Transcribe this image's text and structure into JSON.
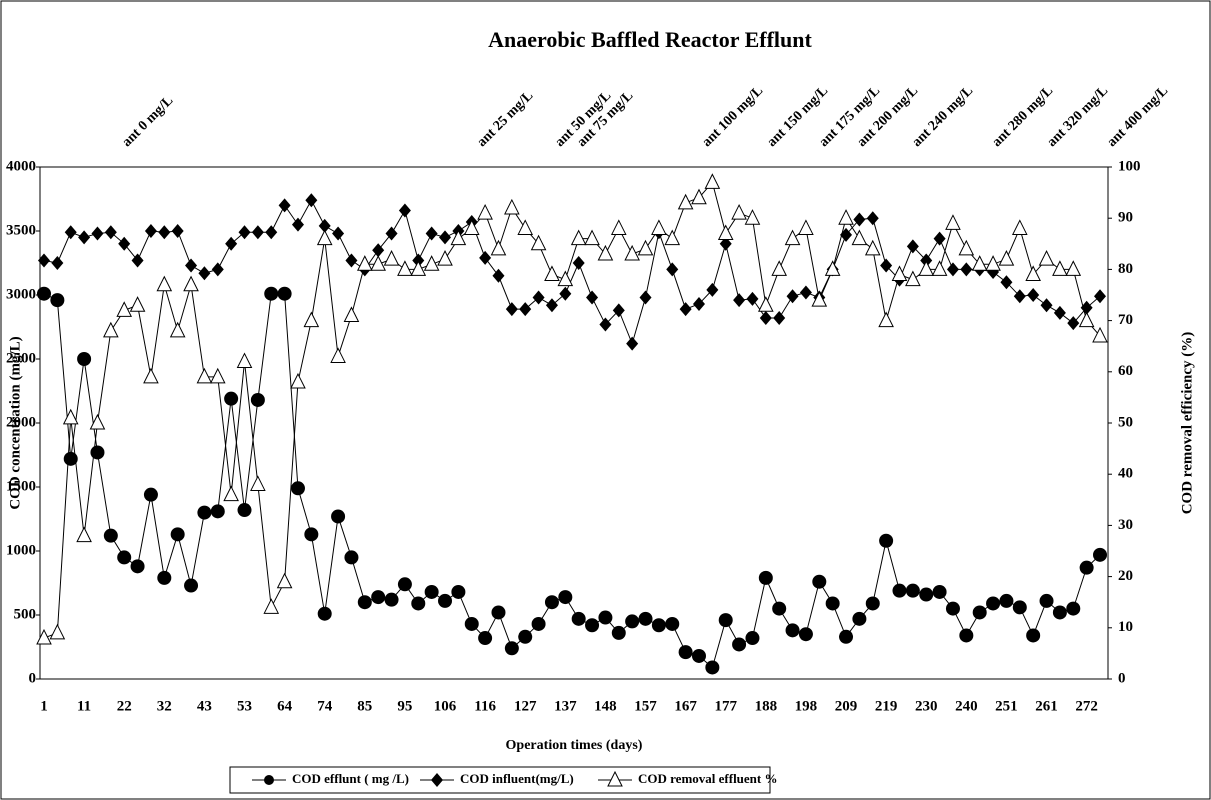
{
  "chart_data": {
    "type": "line",
    "title": "Anaerobic Baffled Reactor Efflunt",
    "x_label": "Operation times (days)",
    "y_label": "COD concentration (mg/L)",
    "y2_label": "COD removal efficiency (%)",
    "annotations": [
      "ant 0 mg/L",
      "ant 25 mg/L",
      "ant 50 mg/L",
      "ant 75 mg/L",
      "ant 100 mg/L",
      "ant 150 mg/L",
      "ant 175 mg/L",
      "ant 200 mg/L",
      "ant 240 mg/L",
      "ant 280 mg/L",
      "ant 320 mg/L",
      "ant 400 mg/L"
    ],
    "categories": [
      "1",
      null,
      null,
      "11",
      null,
      null,
      "22",
      null,
      null,
      "32",
      null,
      null,
      "43",
      null,
      null,
      "53",
      null,
      null,
      "64",
      null,
      null,
      "74",
      null,
      null,
      "85",
      null,
      null,
      "95",
      null,
      null,
      "106",
      null,
      null,
      "116",
      null,
      null,
      "127",
      null,
      null,
      "137",
      null,
      null,
      "148",
      null,
      null,
      "157",
      null,
      null,
      "167",
      null,
      null,
      "177",
      null,
      null,
      "188",
      null,
      null,
      "198",
      null,
      null,
      "209",
      null,
      null,
      "219",
      null,
      null,
      "230",
      null,
      null,
      "240",
      null,
      null,
      "251",
      null,
      null,
      "261",
      null,
      null,
      "272",
      null
    ],
    "ylim": [
      0,
      4000
    ],
    "yticks": [
      0,
      500,
      1000,
      1500,
      2000,
      2500,
      3000,
      3500,
      4000
    ],
    "y2lim": [
      0,
      100
    ],
    "y2ticks": [
      0,
      10,
      20,
      30,
      40,
      50,
      60,
      70,
      80,
      90,
      100
    ],
    "series": [
      {
        "name": "COD efflunt ( mg /L)",
        "color": "#000000",
        "marker": "circle",
        "values": [
          3010,
          2960,
          1720,
          2500,
          1770,
          1120,
          950,
          880,
          1440,
          790,
          1130,
          730,
          1300,
          1310,
          2190,
          1320,
          2180,
          3010,
          3010,
          1490,
          1130,
          510,
          1270,
          950,
          600,
          640,
          620,
          740,
          590,
          680,
          610,
          680,
          430,
          320,
          520,
          240,
          330,
          430,
          600,
          640,
          470,
          420,
          480,
          360,
          450,
          470,
          420,
          430,
          210,
          180,
          90,
          460,
          270,
          320,
          790,
          550,
          380,
          350,
          760,
          590,
          330,
          470,
          590,
          1080,
          690,
          690,
          660,
          680,
          550,
          340,
          520,
          590,
          610,
          560,
          340,
          610,
          520,
          550,
          870,
          970
        ]
      },
      {
        "name": "COD influent(mg/L)",
        "color": "#000000",
        "marker": "diamond",
        "values": [
          3270,
          3250,
          3490,
          3450,
          3480,
          3490,
          3400,
          3270,
          3500,
          3490,
          3500,
          3230,
          3170,
          3200,
          3400,
          3490,
          3490,
          3490,
          3700,
          3550,
          3740,
          3540,
          3480,
          3270,
          3200,
          3350,
          3480,
          3660,
          3270,
          3480,
          3450,
          3500,
          3570,
          3290,
          3150,
          2890,
          2890,
          2980,
          2920,
          3010,
          3250,
          2980,
          2770,
          2880,
          2620,
          2980,
          3490,
          3200,
          2890,
          2930,
          3040,
          3400,
          2960,
          2970,
          2820,
          2820,
          2990,
          3020,
          2980,
          3200,
          3470,
          3590,
          3600,
          3230,
          3120,
          3380,
          3270,
          3440,
          3200,
          3200,
          3200,
          3180,
          3100,
          2990,
          3000,
          2920,
          2860,
          2780,
          2900,
          2990
        ]
      },
      {
        "name": "COD removal effluent %",
        "color": "#000000",
        "marker": "triangle",
        "axis": "y2",
        "values": [
          8,
          9,
          51,
          28,
          50,
          68,
          72,
          73,
          59,
          77,
          68,
          77,
          59,
          59,
          36,
          62,
          38,
          14,
          19,
          58,
          70,
          86,
          63,
          71,
          81,
          81,
          82,
          80,
          80,
          81,
          82,
          86,
          88,
          91,
          84,
          92,
          88,
          85,
          79,
          78,
          86,
          86,
          83,
          88,
          83,
          84,
          88,
          86,
          93,
          94,
          97,
          87,
          91,
          90,
          73,
          80,
          86,
          88,
          74,
          80,
          90,
          86,
          84,
          70,
          79,
          78,
          80,
          80,
          89,
          84,
          81,
          81,
          82,
          88,
          79,
          82,
          80,
          80,
          70,
          67
        ]
      }
    ]
  }
}
